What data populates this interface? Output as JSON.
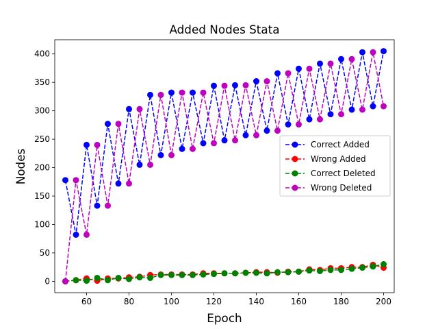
{
  "chart_data": {
    "type": "line",
    "title": "Added Nodes Stata",
    "xlabel": "Epoch",
    "ylabel": "Nodes",
    "xlim": [
      45,
      205
    ],
    "ylim": [
      -20,
      425
    ],
    "xticks": [
      60,
      80,
      100,
      120,
      140,
      160,
      180,
      200
    ],
    "yticks": [
      0,
      50,
      100,
      150,
      200,
      250,
      300,
      350,
      400
    ],
    "grid": false,
    "legend_position": "center-right",
    "x": [
      50,
      55,
      60,
      65,
      70,
      75,
      80,
      85,
      90,
      95,
      100,
      105,
      110,
      115,
      120,
      125,
      130,
      135,
      140,
      145,
      150,
      155,
      160,
      165,
      170,
      175,
      180,
      185,
      190,
      195,
      200
    ],
    "series": [
      {
        "name": "Correct Added",
        "color": "#0000ff",
        "values": [
          178,
          82,
          240,
          133,
          277,
          172,
          303,
          205,
          328,
          222,
          332,
          233,
          332,
          243,
          344,
          248,
          345,
          257,
          352,
          265,
          366,
          276,
          374,
          285,
          383,
          294,
          391,
          302,
          403,
          308,
          405
        ]
      },
      {
        "name": "Wrong Added",
        "color": "#ff0000",
        "values": [
          0,
          2,
          5,
          1,
          5,
          5,
          7,
          8,
          11,
          12,
          12,
          12,
          12,
          14,
          14,
          14,
          14,
          15,
          16,
          16,
          15,
          17,
          17,
          21,
          20,
          23,
          23,
          25,
          25,
          29,
          24
        ]
      },
      {
        "name": "Correct Deleted",
        "color": "#008000",
        "values": [
          0,
          2,
          1,
          6,
          2,
          6,
          4,
          7,
          6,
          11,
          11,
          11,
          11,
          12,
          13,
          14,
          14,
          15,
          15,
          14,
          16,
          16,
          17,
          19,
          18,
          20,
          20,
          22,
          24,
          26,
          30
        ]
      },
      {
        "name": "Wrong Deleted",
        "color": "#bf00bf",
        "values": [
          0,
          178,
          82,
          240,
          133,
          277,
          172,
          303,
          205,
          328,
          222,
          332,
          233,
          332,
          243,
          344,
          248,
          345,
          257,
          352,
          265,
          366,
          276,
          374,
          285,
          383,
          294,
          391,
          302,
          403,
          308
        ]
      }
    ]
  }
}
